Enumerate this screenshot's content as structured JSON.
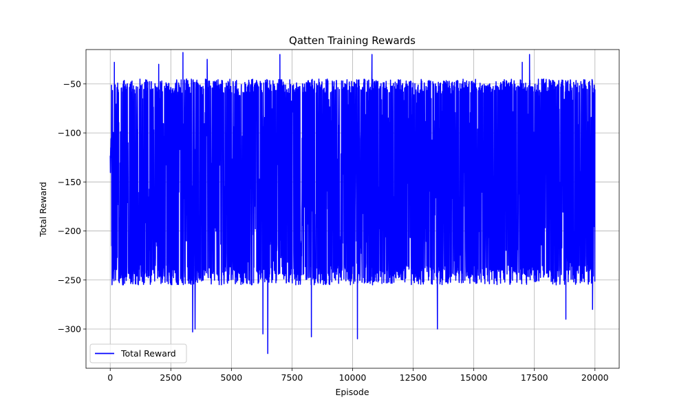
{
  "chart_data": {
    "type": "line",
    "title": "Qatten Training Rewards",
    "xlabel": "Episode",
    "ylabel": "Total Reward",
    "xlim": [
      -1000,
      21000
    ],
    "ylim": [
      -340,
      -15
    ],
    "xticks": [
      0,
      2500,
      5000,
      7500,
      10000,
      12500,
      15000,
      17500,
      20000
    ],
    "xtick_labels": [
      "0",
      "2500",
      "5000",
      "7500",
      "10000",
      "12500",
      "15000",
      "17500",
      "20000"
    ],
    "yticks": [
      -300,
      -250,
      -200,
      -150,
      -100,
      -50
    ],
    "ytick_labels": [
      "−300",
      "−250",
      "−200",
      "−150",
      "−100",
      "−50"
    ],
    "grid": true,
    "legend_position": "lower-left",
    "series": [
      {
        "name": "Total Reward",
        "color": "#0000ff",
        "n_points": 20000,
        "x_range": [
          0,
          20000
        ],
        "approx_upper_envelope": -45,
        "approx_lower_envelope": -255,
        "approx_mean": -150,
        "notable_extremes": [
          {
            "x": 170,
            "y": -28
          },
          {
            "x": 2000,
            "y": -30
          },
          {
            "x": 3000,
            "y": -18
          },
          {
            "x": 3400,
            "y": -303
          },
          {
            "x": 3500,
            "y": -300
          },
          {
            "x": 4000,
            "y": -25
          },
          {
            "x": 6300,
            "y": -305
          },
          {
            "x": 6500,
            "y": -325
          },
          {
            "x": 7000,
            "y": -20
          },
          {
            "x": 8300,
            "y": -308
          },
          {
            "x": 10200,
            "y": -310
          },
          {
            "x": 10800,
            "y": -20
          },
          {
            "x": 13500,
            "y": -300
          },
          {
            "x": 17000,
            "y": -28
          },
          {
            "x": 17300,
            "y": -20
          },
          {
            "x": 18800,
            "y": -290
          },
          {
            "x": 19900,
            "y": -280
          }
        ]
      }
    ]
  }
}
